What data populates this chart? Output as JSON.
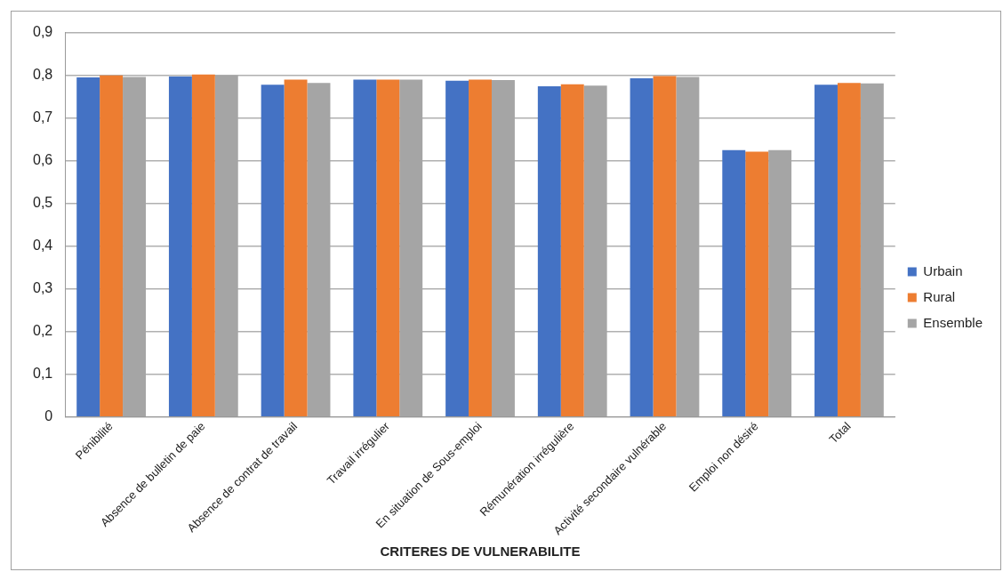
{
  "chart_data": {
    "type": "bar",
    "xlabel": "CRITERES DE VULNERABILITE",
    "categories": [
      "Pénibilité",
      "Absence de bulletin de paie",
      "Absence de contrat de travail",
      "Travail irrégulier",
      "En situation de Sous-emploi",
      "Rémunération irrégulière",
      "Activité secondaire vulnérable",
      "Emploi non désiré",
      "Total"
    ],
    "series": [
      {
        "name": "Urbain",
        "color": "#4472c4",
        "values": [
          0.795,
          0.797,
          0.778,
          0.79,
          0.787,
          0.774,
          0.793,
          0.625,
          0.778
        ]
      },
      {
        "name": "Rural",
        "color": "#ed7d31",
        "values": [
          0.8,
          0.802,
          0.79,
          0.79,
          0.79,
          0.779,
          0.798,
          0.621,
          0.782
        ]
      },
      {
        "name": "Ensemble",
        "color": "#a5a5a5",
        "values": [
          0.796,
          0.8,
          0.782,
          0.79,
          0.789,
          0.776,
          0.796,
          0.625,
          0.781
        ]
      }
    ],
    "ylim": [
      0,
      0.9
    ],
    "yticks": [
      0,
      {
        "value": 0.1,
        "label": "0,1"
      },
      {
        "value": 0.2,
        "label": "0,2"
      },
      {
        "value": 0.3,
        "label": "0,3"
      },
      {
        "value": 0.4,
        "label": "0,4"
      },
      {
        "value": 0.5,
        "label": "0,5"
      },
      {
        "value": 0.6,
        "label": "0,6"
      },
      {
        "value": 0.7,
        "label": "0,7"
      },
      {
        "value": 0.8,
        "label": "0,8"
      },
      {
        "value": 0.9,
        "label": "0,9"
      }
    ],
    "grid": "y",
    "legend": "right"
  }
}
